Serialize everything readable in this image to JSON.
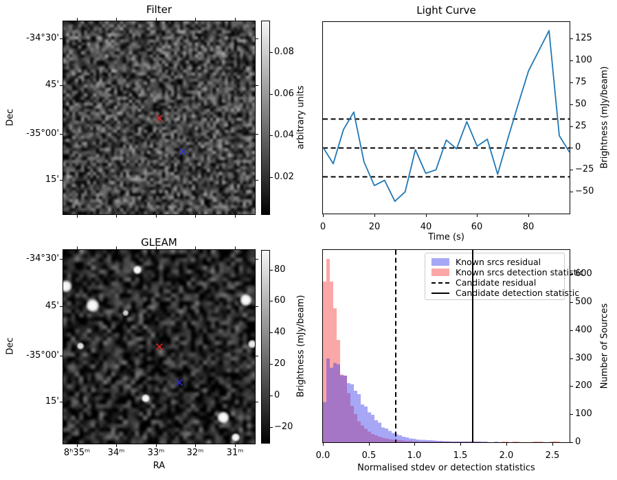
{
  "figure": {
    "background": "#ffffff"
  },
  "chart_data": [
    {
      "id": "filter_map",
      "type": "heatmap",
      "title": "Filter",
      "ylabel": "Dec",
      "y_tick_labels": [
        "-34°30'",
        "45'",
        "-35°00'",
        "15'"
      ],
      "colorbar": {
        "label": "arbitrary units",
        "tick_labels": [
          "0.08",
          "0.06",
          "0.04",
          "0.02"
        ],
        "tick_values": [
          0.08,
          0.06,
          0.04,
          0.02
        ],
        "vmin": 0.002,
        "vmax": 0.095
      },
      "markers": [
        {
          "name": "candidate-marker",
          "shape": "x",
          "color": "#e22222",
          "fx": 0.502,
          "fy": 0.502
        },
        {
          "name": "reference-marker",
          "shape": "x",
          "color": "#2a2acc",
          "fx": 0.624,
          "fy": 0.676
        }
      ]
    },
    {
      "id": "light_curve",
      "type": "line",
      "title": "Light Curve",
      "xlabel": "Time (s)",
      "ylabel": "Brightness (mJy/beam)",
      "x": [
        0,
        4,
        8,
        12,
        16,
        20,
        24,
        28,
        32,
        36,
        40,
        44,
        48,
        52,
        56,
        60,
        64,
        68,
        72,
        76,
        80,
        84,
        88,
        92,
        96
      ],
      "y": [
        1,
        -18,
        21,
        41,
        -16,
        -43,
        -37,
        -61,
        -50,
        -2,
        -29,
        -25,
        9,
        -1,
        30,
        2,
        10,
        -30,
        11,
        50,
        88,
        111,
        134,
        14,
        -5
      ],
      "x_ticks": [
        0,
        20,
        40,
        60,
        80
      ],
      "x_tick_labels": [
        "0",
        "20",
        "40",
        "60",
        "80"
      ],
      "y_ticks": [
        -50,
        -25,
        0,
        25,
        50,
        75,
        100,
        125
      ],
      "y_tick_labels": [
        "−50",
        "−25",
        "0",
        "25",
        "50",
        "75",
        "100",
        "125"
      ],
      "xlim": [
        0,
        96
      ],
      "ylim": [
        -75,
        144
      ],
      "hlines": {
        "values": [
          33,
          0,
          -33
        ],
        "style": "dashed",
        "color": "#000000"
      },
      "line_color": "#1f77b4"
    },
    {
      "id": "gleam_map",
      "type": "heatmap",
      "title": "GLEAM",
      "xlabel": "RA",
      "ylabel": "Dec",
      "x_tick_labels": [
        "8ʰ35ᵐ",
        "34ᵐ",
        "33ᵐ",
        "32ᵐ",
        "31ᵐ"
      ],
      "y_tick_labels": [
        "-34°30'",
        "45'",
        "-35°00'",
        "15'"
      ],
      "colorbar": {
        "label": "Brightness (mJy/beam)",
        "tick_labels": [
          "80",
          "60",
          "40",
          "20",
          "0",
          "−20"
        ],
        "tick_values": [
          80,
          60,
          40,
          20,
          0,
          -20
        ],
        "vmin": -30,
        "vmax": 92
      },
      "bright_sources": [
        {
          "fx": 0.014,
          "fy": 0.188,
          "r": 10,
          "a": 1
        },
        {
          "fx": 0.154,
          "fy": 0.287,
          "r": 11,
          "a": 1
        },
        {
          "fx": 0.387,
          "fy": 0.103,
          "r": 7,
          "a": 1
        },
        {
          "fx": 0.326,
          "fy": 0.326,
          "r": 5,
          "a": 0.8
        },
        {
          "fx": 0.09,
          "fy": 0.496,
          "r": 6,
          "a": 0.9
        },
        {
          "fx": 0.953,
          "fy": 0.259,
          "r": 10,
          "a": 1
        },
        {
          "fx": 0.986,
          "fy": 0.486,
          "r": 7,
          "a": 0.95
        },
        {
          "fx": 0.43,
          "fy": 0.766,
          "r": 7,
          "a": 1
        },
        {
          "fx": 0.835,
          "fy": 0.865,
          "r": 10,
          "a": 1
        },
        {
          "fx": 0.9,
          "fy": 0.968,
          "r": 7,
          "a": 1
        }
      ],
      "markers": [
        {
          "name": "candidate-marker",
          "shape": "x",
          "color": "#e22222",
          "fx": 0.502,
          "fy": 0.5
        },
        {
          "name": "reference-marker",
          "shape": "x",
          "color": "#2a2acc",
          "fx": 0.606,
          "fy": 0.684
        }
      ]
    },
    {
      "id": "detection_histogram",
      "type": "bar",
      "xlabel": "Normalised stdev or detection statistics",
      "ylabel": "Number of Sources",
      "bin_start": 0,
      "bin_width": 0.0375,
      "series": [
        {
          "name": "Known srcs residual",
          "color": "rgba(60,60,235,0.45)",
          "values": [
            143,
            299,
            266,
            283,
            279,
            239,
            238,
            211,
            207,
            184,
            172,
            135,
            127,
            107,
            98,
            78,
            70,
            53,
            49,
            41,
            33,
            28,
            24,
            20,
            17,
            14,
            12,
            10,
            9,
            8,
            7,
            7,
            6,
            5,
            5,
            4,
            4,
            3,
            3,
            2,
            2,
            2,
            1,
            1,
            1,
            1,
            1,
            1,
            0,
            0,
            1,
            0,
            0,
            0,
            0,
            0,
            0,
            0,
            0,
            0,
            0,
            0,
            0,
            0,
            0,
            0,
            0,
            0,
            0,
            0,
            0,
            0
          ]
        },
        {
          "name": "Known srcs detection statistic",
          "color": "rgba(250,80,80,0.5)",
          "values": [
            574,
            655,
            574,
            478,
            365,
            242,
            238,
            176,
            130,
            100,
            75,
            60,
            48,
            38,
            30,
            24,
            20,
            16,
            13,
            11,
            9,
            8,
            7,
            6,
            5,
            5,
            4,
            4,
            3,
            3,
            3,
            2,
            2,
            2,
            2,
            2,
            2,
            1,
            1,
            1,
            1,
            1,
            1,
            4,
            3,
            2,
            0,
            0,
            0,
            0,
            0,
            0,
            3,
            2,
            0,
            3,
            2,
            0,
            0,
            0,
            0,
            2,
            3,
            2,
            0,
            0,
            3,
            4,
            3,
            0,
            0,
            0
          ]
        }
      ],
      "vlines": [
        {
          "name": "Candidate residual",
          "x": 0.795,
          "style": "dashed",
          "color": "#000000"
        },
        {
          "name": "Candidate detection statistic",
          "x": 1.633,
          "style": "solid",
          "color": "#000000"
        }
      ],
      "x_ticks": [
        0.0,
        0.5,
        1.0,
        1.5,
        2.0,
        2.5
      ],
      "x_tick_labels": [
        "0.0",
        "0.5",
        "1.0",
        "1.5",
        "2.0",
        "2.5"
      ],
      "y_ticks": [
        0,
        100,
        200,
        300,
        400,
        500,
        600
      ],
      "y_tick_labels": [
        "0",
        "100",
        "200",
        "300",
        "400",
        "500",
        "600"
      ],
      "xlim": [
        0,
        2.69
      ],
      "ylim": [
        0,
        687
      ],
      "legend": [
        "Known srcs residual",
        "Known srcs detection statistic",
        "Candidate residual",
        "Candidate detection statistic"
      ]
    }
  ]
}
